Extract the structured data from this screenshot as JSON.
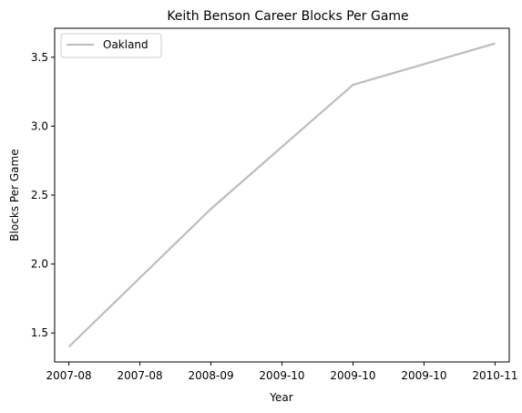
{
  "chart_data": {
    "type": "line",
    "title": "Keith Benson Career Blocks Per Game",
    "xlabel": "Year",
    "ylabel": "Blocks Per Game",
    "x_tick_labels": [
      "2007-08",
      "2007-08",
      "2008-09",
      "2009-10",
      "2009-10",
      "2009-10",
      "2010-11"
    ],
    "categories": [
      "2007-08",
      "2008-09",
      "2009-10",
      "2010-11"
    ],
    "series": [
      {
        "name": "Oakland",
        "color": "#bdbdbd",
        "values": [
          1.4,
          2.4,
          3.3,
          3.6
        ]
      }
    ],
    "xlim": [
      -0.1,
      3.1
    ],
    "ylim": [
      1.29,
      3.71
    ],
    "y_ticks": [
      1.5,
      2.0,
      2.5,
      3.0,
      3.5
    ],
    "y_tick_labels": [
      "1.5",
      "2.0",
      "2.5",
      "3.0",
      "3.5"
    ],
    "grid": false,
    "legend_position": "top-left"
  }
}
